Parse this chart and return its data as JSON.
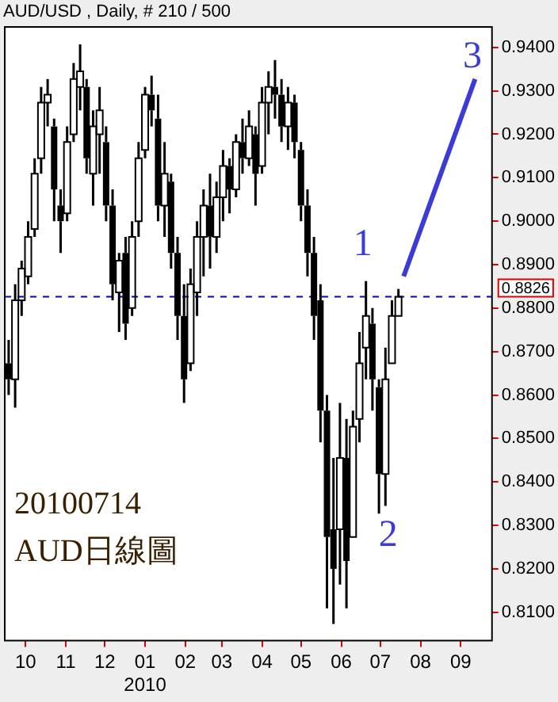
{
  "chart_data": {
    "type": "candlestick",
    "title": "AUD/USD , Daily, # 210 / 500",
    "color": "#000000",
    "x": [
      "2009-09-18",
      "2009-09-23",
      "2009-09-28",
      "2009-10-03",
      "2009-10-08",
      "2009-10-13",
      "2009-10-18",
      "2009-10-23",
      "2009-10-28",
      "2009-11-02",
      "2009-11-07",
      "2009-11-12",
      "2009-11-17",
      "2009-11-22",
      "2009-11-27",
      "2009-12-02",
      "2009-12-07",
      "2009-12-12",
      "2009-12-17",
      "2009-12-22",
      "2009-12-27",
      "2010-01-01",
      "2010-01-06",
      "2010-01-11",
      "2010-01-16",
      "2010-01-21",
      "2010-01-26",
      "2010-01-31",
      "2010-02-05",
      "2010-02-10",
      "2010-02-15",
      "2010-02-20",
      "2010-02-25",
      "2010-03-02",
      "2010-03-07",
      "2010-03-12",
      "2010-03-17",
      "2010-03-22",
      "2010-03-27",
      "2010-04-01",
      "2010-04-06",
      "2010-04-11",
      "2010-04-16",
      "2010-04-21",
      "2010-04-26",
      "2010-05-01",
      "2010-05-06",
      "2010-05-11",
      "2010-05-16",
      "2010-05-21",
      "2010-05-26",
      "2010-05-31",
      "2010-06-05",
      "2010-06-10",
      "2010-06-15",
      "2010-06-20",
      "2010-06-25",
      "2010-06-30",
      "2010-07-05",
      "2010-07-10",
      "2010-07-15"
    ],
    "ohlc": [
      [
        0.8673,
        0.8727,
        0.86,
        0.8636
      ],
      [
        0.8636,
        0.8855,
        0.8571,
        0.8818
      ],
      [
        0.8818,
        0.8909,
        0.8782,
        0.8891
      ],
      [
        0.8873,
        0.9,
        0.8855,
        0.8964
      ],
      [
        0.8982,
        0.9145,
        0.8964,
        0.9109
      ],
      [
        0.9145,
        0.9309,
        0.9109,
        0.9273
      ],
      [
        0.9273,
        0.9327,
        0.9218,
        0.9291
      ],
      [
        0.9218,
        0.9236,
        0.9,
        0.9073
      ],
      [
        0.9036,
        0.9073,
        0.8927,
        0.9
      ],
      [
        0.9018,
        0.9218,
        0.9,
        0.9182
      ],
      [
        0.92,
        0.9364,
        0.9182,
        0.9327
      ],
      [
        0.9309,
        0.9407,
        0.9255,
        0.9345
      ],
      [
        0.9309,
        0.9327,
        0.9109,
        0.9145
      ],
      [
        0.9109,
        0.9255,
        0.9036,
        0.9218
      ],
      [
        0.92,
        0.9309,
        0.9109,
        0.9255
      ],
      [
        0.9182,
        0.9218,
        0.9,
        0.9036
      ],
      [
        0.9036,
        0.9073,
        0.8818,
        0.8855
      ],
      [
        0.8836,
        0.8927,
        0.8745,
        0.8909
      ],
      [
        0.8927,
        0.8964,
        0.8727,
        0.8764
      ],
      [
        0.88,
        0.9,
        0.8782,
        0.8964
      ],
      [
        0.9,
        0.9182,
        0.8964,
        0.9145
      ],
      [
        0.9164,
        0.9309,
        0.9145,
        0.9291
      ],
      [
        0.9291,
        0.9335,
        0.9218,
        0.9255
      ],
      [
        0.9236,
        0.9291,
        0.9,
        0.9036
      ],
      [
        0.9036,
        0.9182,
        0.8964,
        0.9109
      ],
      [
        0.9091,
        0.9109,
        0.8891,
        0.8927
      ],
      [
        0.8927,
        0.8964,
        0.8727,
        0.8782
      ],
      [
        0.8782,
        0.8855,
        0.8582,
        0.8636
      ],
      [
        0.8673,
        0.8891,
        0.8655,
        0.8855
      ],
      [
        0.8836,
        0.9,
        0.8782,
        0.8964
      ],
      [
        0.8964,
        0.9073,
        0.8873,
        0.9036
      ],
      [
        0.9036,
        0.9109,
        0.8891,
        0.8964
      ],
      [
        0.8964,
        0.9091,
        0.8927,
        0.9055
      ],
      [
        0.9055,
        0.9164,
        0.9,
        0.9127
      ],
      [
        0.9127,
        0.9145,
        0.9018,
        0.9073
      ],
      [
        0.9073,
        0.92,
        0.9055,
        0.9182
      ],
      [
        0.9182,
        0.9236,
        0.9109,
        0.9145
      ],
      [
        0.9145,
        0.9255,
        0.9127,
        0.9218
      ],
      [
        0.92,
        0.9218,
        0.9036,
        0.9109
      ],
      [
        0.9127,
        0.9309,
        0.9109,
        0.9273
      ],
      [
        0.9273,
        0.9345,
        0.92,
        0.9309
      ],
      [
        0.9309,
        0.9371,
        0.9236,
        0.9291
      ],
      [
        0.9291,
        0.9327,
        0.9182,
        0.9218
      ],
      [
        0.9218,
        0.9309,
        0.9164,
        0.9273
      ],
      [
        0.9273,
        0.9291,
        0.9145,
        0.9182
      ],
      [
        0.9164,
        0.9182,
        0.9,
        0.9036
      ],
      [
        0.9036,
        0.9073,
        0.8873,
        0.8927
      ],
      [
        0.8927,
        0.8964,
        0.8727,
        0.8782
      ],
      [
        0.8818,
        0.8855,
        0.8491,
        0.8564
      ],
      [
        0.8564,
        0.86,
        0.8109,
        0.8273
      ],
      [
        0.8291,
        0.8455,
        0.8073,
        0.82
      ],
      [
        0.8291,
        0.8582,
        0.8164,
        0.8455
      ],
      [
        0.8455,
        0.8545,
        0.8109,
        0.8218
      ],
      [
        0.8273,
        0.8564,
        0.8273,
        0.8527
      ],
      [
        0.8545,
        0.8745,
        0.8491,
        0.8673
      ],
      [
        0.8709,
        0.8862,
        0.8636,
        0.8782
      ],
      [
        0.8764,
        0.88,
        0.8564,
        0.8636
      ],
      [
        0.8618,
        0.8636,
        0.8327,
        0.8418
      ],
      [
        0.8418,
        0.8709,
        0.8345,
        0.8636
      ],
      [
        0.8673,
        0.8818,
        0.8673,
        0.8782
      ],
      [
        0.8782,
        0.8844,
        0.8782,
        0.8826
      ]
    ],
    "series": [
      {
        "type": "line",
        "x": [
          "2010-07-19",
          "2010-09-12"
        ],
        "values": [
          0.8873,
          0.9327
        ],
        "color": "#3b3bd6"
      }
    ],
    "xlim": [
      "2009-09-15",
      "2010-09-25"
    ],
    "xticks": [
      {
        "value": "2009-10-01",
        "label": "10"
      },
      {
        "value": "2009-11-01",
        "label": "11"
      },
      {
        "value": "2009-12-01",
        "label": "12"
      },
      {
        "value": "2010-01-01",
        "label": "01\n2010"
      },
      {
        "value": "2010-02-01",
        "label": "02"
      },
      {
        "value": "2010-03-01",
        "label": "03"
      },
      {
        "value": "2010-04-01",
        "label": "04"
      },
      {
        "value": "2010-05-01",
        "label": "05"
      },
      {
        "value": "2010-06-01",
        "label": "06"
      },
      {
        "value": "2010-07-01",
        "label": "07"
      },
      {
        "value": "2010-08-01",
        "label": "08"
      },
      {
        "value": "2010-09-01",
        "label": "09"
      }
    ],
    "ylim": [
      0.8035,
      0.9447
    ],
    "yticks": [
      {
        "value": 0.81,
        "label": "0.8100"
      },
      {
        "value": 0.82,
        "label": "0.8200"
      },
      {
        "value": 0.83,
        "label": "0.8300"
      },
      {
        "value": 0.84,
        "label": "0.8400"
      },
      {
        "value": 0.85,
        "label": "0.8500"
      },
      {
        "value": 0.86,
        "label": "0.8600"
      },
      {
        "value": 0.87,
        "label": "0.8700"
      },
      {
        "value": 0.88,
        "label": "0.8800"
      },
      {
        "value": 0.89,
        "label": "0.8900"
      },
      {
        "value": 0.9,
        "label": "0.9000"
      },
      {
        "value": 0.91,
        "label": "0.9100"
      },
      {
        "value": 0.92,
        "label": "0.9200"
      },
      {
        "value": 0.93,
        "label": "0.9300"
      },
      {
        "value": 0.94,
        "label": "0.9400"
      }
    ],
    "ref_lines": [
      {
        "axis": "y",
        "value": 0.8826,
        "label": "0.8826",
        "color": "#0000cc",
        "line_style": "dashed"
      }
    ],
    "annotations": [
      "20100714",
      "AUD日線圖",
      "1",
      "2",
      "3"
    ]
  }
}
